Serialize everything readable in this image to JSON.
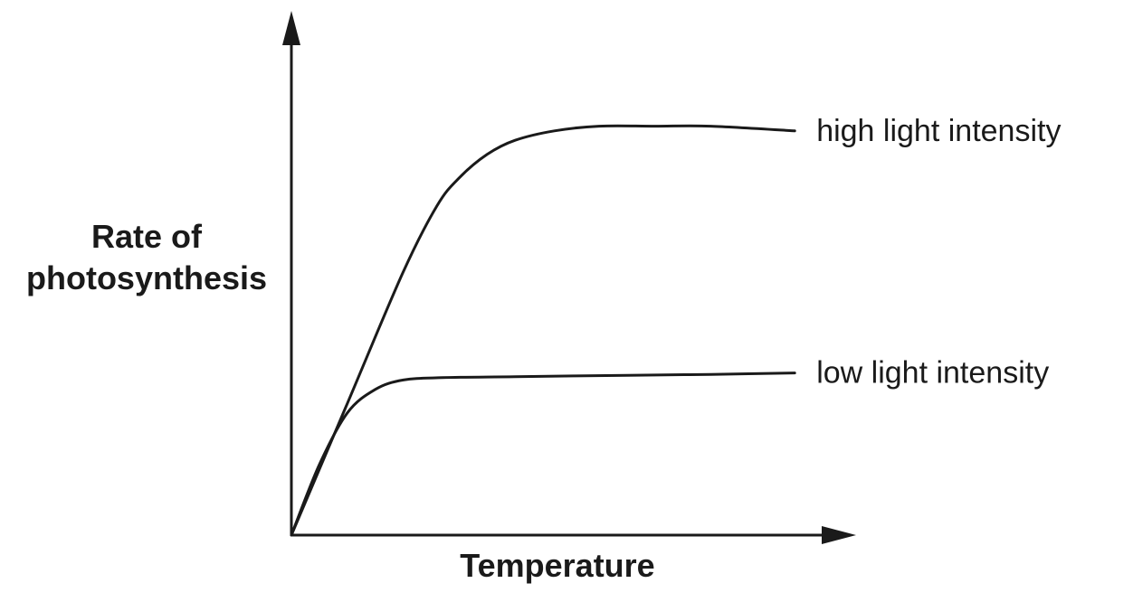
{
  "chart_data": {
    "type": "line",
    "title": "",
    "xlabel": "Temperature",
    "ylabel_lines": [
      "Rate of",
      "photosynthesis"
    ],
    "xlim": [
      0,
      100
    ],
    "ylim": [
      0,
      100
    ],
    "grid": false,
    "tick_labels": false,
    "legend": "inline labels at right end of each line",
    "series": [
      {
        "name": "high light intensity",
        "x": [
          0,
          10,
          20,
          26,
          30,
          35,
          40,
          47,
          55,
          65,
          75,
          90
        ],
        "y": [
          0,
          28,
          56,
          70,
          76,
          81,
          84,
          86,
          87,
          87,
          87,
          86
        ]
      },
      {
        "name": "low light intensity",
        "x": [
          0,
          5,
          10,
          15,
          20,
          27,
          40,
          60,
          75,
          90
        ],
        "y": [
          0,
          15,
          26,
          31,
          33,
          33.5,
          33.7,
          34,
          34.2,
          34.5
        ]
      }
    ]
  },
  "colors": {
    "ink": "#1a1a1a",
    "background": "#ffffff"
  }
}
